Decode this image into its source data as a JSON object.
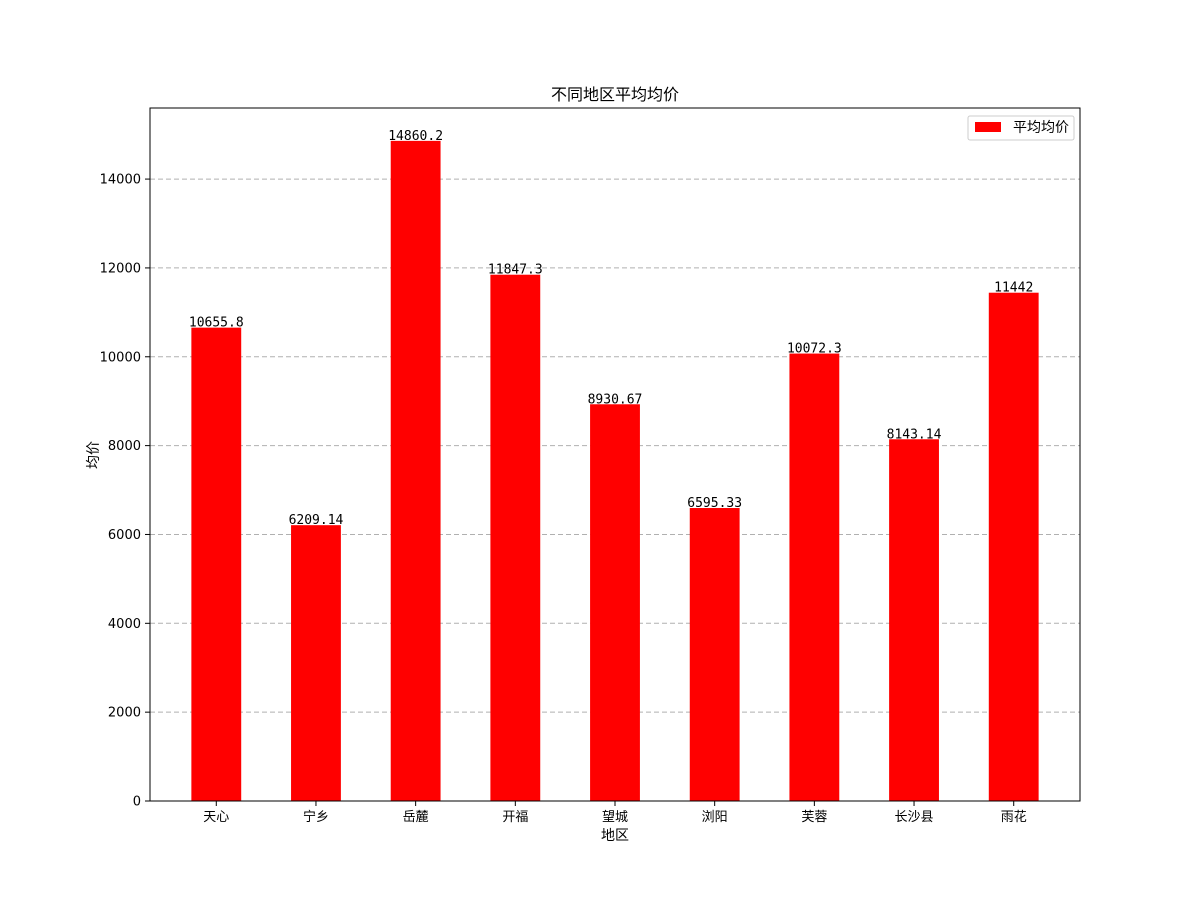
{
  "chart_data": {
    "type": "bar",
    "title": "不同地区平均均价",
    "xlabel": "地区",
    "ylabel": "均价",
    "categories": [
      "天心",
      "宁乡",
      "岳麓",
      "开福",
      "望城",
      "浏阳",
      "芙蓉",
      "长沙县",
      "雨花"
    ],
    "series": [
      {
        "name": "平均均价",
        "values": [
          10655.8,
          6209.14,
          14860.2,
          11847.3,
          8930.67,
          6595.33,
          10072.3,
          8143.14,
          11442
        ],
        "labels": [
          "10655.8",
          "6209.14",
          "14860.2",
          "11847.3",
          "8930.67",
          "6595.33",
          "10072.3",
          "8143.14",
          "11442"
        ],
        "color": "#ff0000"
      }
    ],
    "ylim": [
      0,
      15600
    ],
    "yticks": [
      0,
      2000,
      4000,
      6000,
      8000,
      10000,
      12000,
      14000
    ],
    "ytick_labels": [
      "0",
      "2000",
      "4000",
      "6000",
      "8000",
      "10000",
      "12000",
      "14000"
    ],
    "grid": "y-dashed",
    "legend": "top-right"
  }
}
